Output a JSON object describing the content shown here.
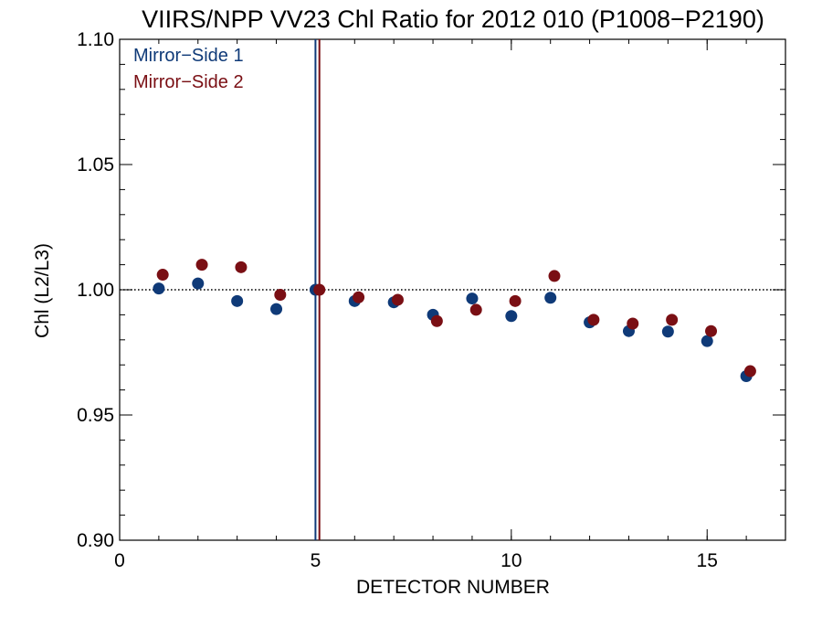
{
  "chart_data": {
    "type": "scatter",
    "title": "VIIRS/NPP VV23 Chl Ratio for 2012 010 (P1008−P2190)",
    "xlabel": "DETECTOR NUMBER",
    "ylabel": "Chl (L2/L3)",
    "xlim": [
      0,
      17
    ],
    "ylim": [
      0.9,
      1.1
    ],
    "x_ticks": [
      0,
      5,
      10,
      15
    ],
    "x_tick_labels": [
      "0",
      "5",
      "10",
      "15"
    ],
    "y_ticks": [
      0.9,
      0.95,
      1.0,
      1.05,
      1.1
    ],
    "y_tick_labels": [
      "0.90",
      "0.95",
      "1.00",
      "1.05",
      "1.10"
    ],
    "reference_line": {
      "y": 1.0,
      "style": "dotted",
      "color": "#000000"
    },
    "legend_position": "top-left",
    "series": [
      {
        "name": "Mirror−Side 1",
        "color": "#0f3a78",
        "vline_x": 5,
        "x": [
          1,
          2,
          3,
          4,
          5,
          6,
          7,
          8,
          9,
          10,
          11,
          12,
          13,
          14,
          15,
          16
        ],
        "y": [
          1.0005,
          1.0025,
          0.9955,
          0.9923,
          1.0,
          0.9955,
          0.995,
          0.99,
          0.9965,
          0.9895,
          0.9968,
          0.987,
          0.9835,
          0.9833,
          0.9795,
          0.9655
        ]
      },
      {
        "name": "Mirror−Side 2",
        "color": "#7a0f14",
        "vline_x": 5.1,
        "x": [
          1.1,
          2.1,
          3.1,
          4.1,
          5.1,
          6.1,
          7.1,
          8.1,
          9.1,
          10.1,
          11.1,
          12.1,
          13.1,
          14.1,
          15.1,
          16.1
        ],
        "y": [
          1.006,
          1.01,
          1.009,
          0.998,
          1.0,
          0.997,
          0.996,
          0.9875,
          0.992,
          0.9955,
          1.0055,
          0.988,
          0.9865,
          0.988,
          0.9835,
          0.9675
        ]
      }
    ]
  }
}
